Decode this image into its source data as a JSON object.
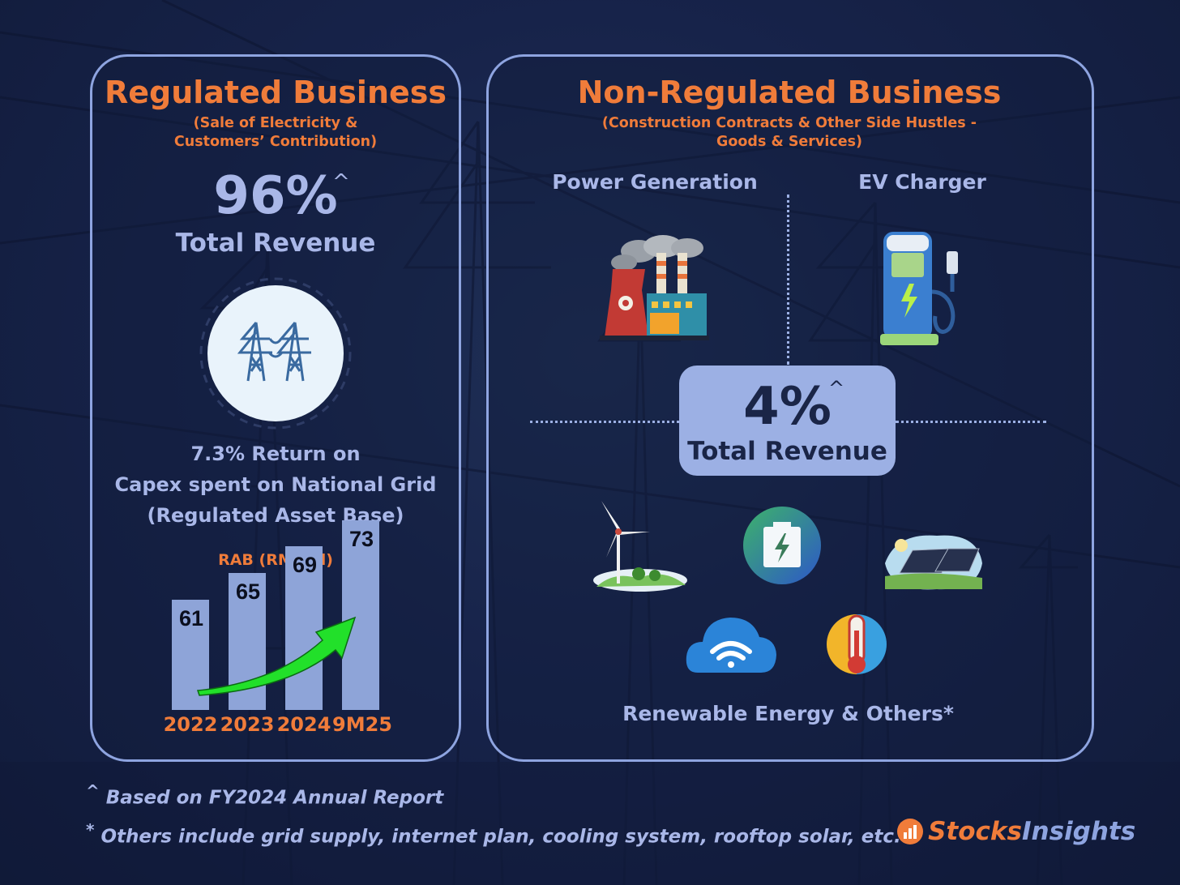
{
  "regulated": {
    "title": "Regulated Business",
    "subtitle": "(Sale of Electricity & Customers’ Contribution)",
    "percent": "96%",
    "caret": "^",
    "revenue_label": "Total Revenue",
    "icon": "transmission-towers-icon",
    "desc_line1": "7.3% Return on",
    "desc_line2": "Capex spent on National Grid",
    "desc_line3": "(Regulated Asset Base)"
  },
  "chart_data": {
    "type": "bar",
    "title": "RAB (RM’ bil)",
    "categories": [
      "2022",
      "2023",
      "2024",
      "9M25"
    ],
    "values": [
      61,
      65,
      69,
      73
    ],
    "trend_arrow_color": "#22e02a",
    "bar_color": "#8ea4d8"
  },
  "non_regulated": {
    "title": "Non-Regulated Business",
    "subtitle": "(Construction Contracts & Other Side Hustles - Goods & Services)",
    "power_label": "Power Generation",
    "ev_label": "EV Charger",
    "percent": "4%",
    "caret": "^",
    "revenue_label": "Total Revenue",
    "others_label": "Renewable Energy & Others*",
    "icons": [
      "power-plant-icon",
      "ev-charger-icon",
      "wind-turbine-icon",
      "battery-icon",
      "solar-panel-icon",
      "wifi-cloud-icon",
      "thermometer-icon"
    ]
  },
  "footnotes": {
    "note1_mark": "^",
    "note1": "Based on FY2024 Annual Report",
    "note2_mark": "*",
    "note2": "Others include grid supply, internet plan, cooling system, rooftop solar, etc."
  },
  "brand": {
    "part1": "Stocks",
    "part2": "Insights"
  },
  "colors": {
    "accent": "#f07c3a",
    "text": "#a9b7e8",
    "border": "#8ea4e0",
    "background": "#17234a"
  }
}
